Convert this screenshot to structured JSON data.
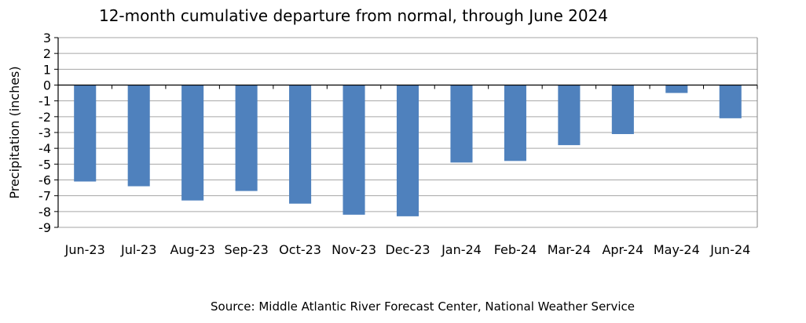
{
  "chart_data": {
    "type": "bar",
    "title": "12-month cumulative departure from normal, through June 2024",
    "ylabel": "Precipitation (inches)",
    "xlabel": "",
    "source": "Source: Middle Atlantic River Forecast Center, National Weather Service",
    "categories": [
      "Jun-23",
      "Jul-23",
      "Aug-23",
      "Sep-23",
      "Oct-23",
      "Nov-23",
      "Dec-23",
      "Jan-24",
      "Feb-24",
      "Mar-24",
      "Apr-24",
      "May-24",
      "Jun-24"
    ],
    "values": [
      -6.1,
      -6.4,
      -7.3,
      -6.7,
      -7.5,
      -8.2,
      -8.3,
      -4.9,
      -4.8,
      -3.8,
      -3.1,
      -0.5,
      -2.1
    ],
    "ylim": [
      -9,
      3
    ],
    "yticks": [
      "3",
      "2",
      "1",
      "0",
      "-1",
      "-2",
      "-3",
      "-4",
      "-5",
      "-6",
      "-7",
      "-8",
      "-9"
    ],
    "grid": true,
    "legend": "none",
    "bar_color": "#4f81bd",
    "grid_color": "#a6a6a6"
  }
}
